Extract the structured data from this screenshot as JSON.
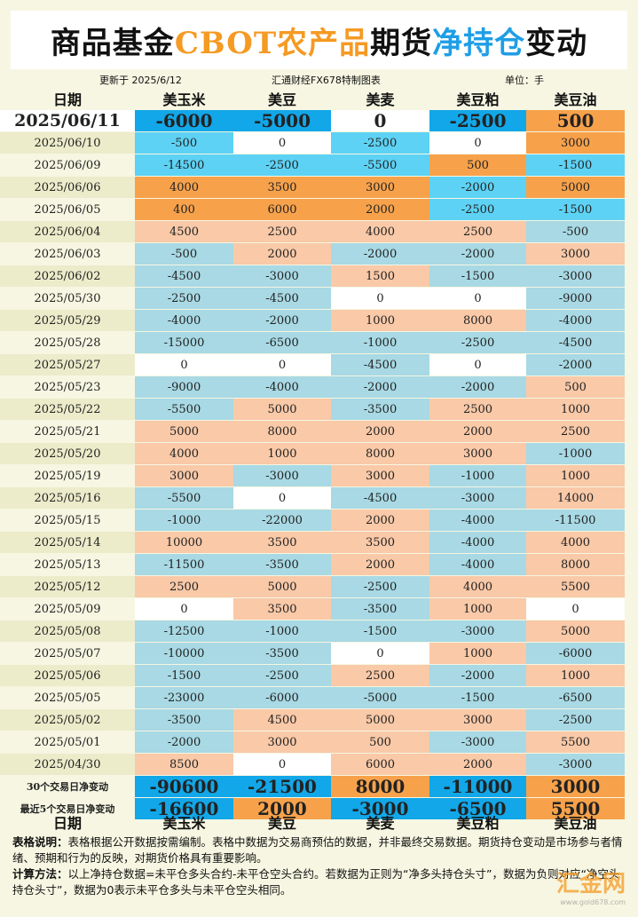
{
  "title": {
    "part1": "商品基金",
    "part2": "CBOT农产品",
    "part3": "期货",
    "part4": "净持仓",
    "part5": "变动"
  },
  "meta": {
    "updated": "更新于 2025/6/12",
    "source": "汇通财经FX678特制图表",
    "unit": "单位：手"
  },
  "headers": [
    "日期",
    "美玉米",
    "美豆",
    "美麦",
    "美豆粕",
    "美豆油"
  ],
  "rows": [
    {
      "date": "2025/06/11",
      "values": [
        "-6000",
        "-5000",
        "0",
        "-2500",
        "500"
      ],
      "colors": [
        "blue",
        "blue",
        "white",
        "blue",
        "orange"
      ],
      "big": true
    },
    {
      "date": "2025/06/10",
      "values": [
        "-500",
        "0",
        "-2500",
        "0",
        "3000"
      ],
      "colors": [
        "cyan",
        "white",
        "cyan",
        "white",
        "orange"
      ]
    },
    {
      "date": "2025/06/09",
      "values": [
        "-14500",
        "-2500",
        "-5500",
        "500",
        "-1500"
      ],
      "colors": [
        "cyan",
        "cyan",
        "cyan",
        "orange",
        "cyan"
      ]
    },
    {
      "date": "2025/06/06",
      "values": [
        "4000",
        "3500",
        "3000",
        "-2000",
        "5000"
      ],
      "colors": [
        "orange",
        "orange",
        "orange",
        "cyan",
        "orange"
      ]
    },
    {
      "date": "2025/06/05",
      "values": [
        "400",
        "6000",
        "2000",
        "-2500",
        "-1500"
      ],
      "colors": [
        "orange",
        "orange",
        "orange",
        "cyan",
        "cyan"
      ]
    },
    {
      "date": "2025/06/04",
      "values": [
        "4500",
        "2500",
        "4000",
        "2500",
        "-500"
      ],
      "colors": [
        "peach",
        "peach",
        "peach",
        "peach",
        "lblue"
      ]
    },
    {
      "date": "2025/06/03",
      "values": [
        "-500",
        "2000",
        "-2000",
        "-2000",
        "3000"
      ],
      "colors": [
        "lblue",
        "peach",
        "lblue",
        "lblue",
        "peach"
      ]
    },
    {
      "date": "2025/06/02",
      "values": [
        "-4500",
        "-3000",
        "1500",
        "-1500",
        "-3000"
      ],
      "colors": [
        "lblue",
        "lblue",
        "peach",
        "lblue",
        "lblue"
      ]
    },
    {
      "date": "2025/05/30",
      "values": [
        "-2500",
        "-4500",
        "0",
        "0",
        "-9000"
      ],
      "colors": [
        "lblue",
        "lblue",
        "white",
        "white",
        "lblue"
      ]
    },
    {
      "date": "2025/05/29",
      "values": [
        "-4000",
        "-2000",
        "1000",
        "8000",
        "-4000"
      ],
      "colors": [
        "lblue",
        "lblue",
        "peach",
        "peach",
        "lblue"
      ]
    },
    {
      "date": "2025/05/28",
      "values": [
        "-15000",
        "-6500",
        "-1000",
        "-2500",
        "-4500"
      ],
      "colors": [
        "lblue",
        "lblue",
        "lblue",
        "lblue",
        "lblue"
      ]
    },
    {
      "date": "2025/05/27",
      "values": [
        "0",
        "0",
        "-4500",
        "0",
        "-2000"
      ],
      "colors": [
        "white",
        "white",
        "lblue",
        "white",
        "lblue"
      ]
    },
    {
      "date": "2025/05/23",
      "values": [
        "-9000",
        "-4000",
        "-2000",
        "-2000",
        "500"
      ],
      "colors": [
        "lblue",
        "lblue",
        "lblue",
        "lblue",
        "peach"
      ]
    },
    {
      "date": "2025/05/22",
      "values": [
        "-5500",
        "5000",
        "-3500",
        "2500",
        "1000"
      ],
      "colors": [
        "lblue",
        "peach",
        "lblue",
        "peach",
        "peach"
      ]
    },
    {
      "date": "2025/05/21",
      "values": [
        "5000",
        "8000",
        "2000",
        "2000",
        "2500"
      ],
      "colors": [
        "peach",
        "peach",
        "peach",
        "peach",
        "peach"
      ]
    },
    {
      "date": "2025/05/20",
      "values": [
        "4000",
        "1000",
        "8000",
        "3000",
        "-1000"
      ],
      "colors": [
        "peach",
        "peach",
        "peach",
        "peach",
        "lblue"
      ]
    },
    {
      "date": "2025/05/19",
      "values": [
        "3000",
        "-3000",
        "3000",
        "-1000",
        "1000"
      ],
      "colors": [
        "peach",
        "lblue",
        "peach",
        "lblue",
        "peach"
      ]
    },
    {
      "date": "2025/05/16",
      "values": [
        "-5500",
        "0",
        "-4500",
        "-3000",
        "14000"
      ],
      "colors": [
        "lblue",
        "white",
        "lblue",
        "lblue",
        "peach"
      ]
    },
    {
      "date": "2025/05/15",
      "values": [
        "-1000",
        "-22000",
        "2000",
        "-4000",
        "-11500"
      ],
      "colors": [
        "lblue",
        "lblue",
        "peach",
        "lblue",
        "lblue"
      ]
    },
    {
      "date": "2025/05/14",
      "values": [
        "10000",
        "3500",
        "3500",
        "-4000",
        "4000"
      ],
      "colors": [
        "peach",
        "peach",
        "peach",
        "lblue",
        "peach"
      ]
    },
    {
      "date": "2025/05/13",
      "values": [
        "-11500",
        "-3500",
        "2000",
        "-4000",
        "8000"
      ],
      "colors": [
        "lblue",
        "lblue",
        "peach",
        "lblue",
        "peach"
      ]
    },
    {
      "date": "2025/05/12",
      "values": [
        "2500",
        "5000",
        "-2500",
        "4000",
        "5500"
      ],
      "colors": [
        "peach",
        "peach",
        "lblue",
        "peach",
        "peach"
      ]
    },
    {
      "date": "2025/05/09",
      "values": [
        "0",
        "3500",
        "-3500",
        "1000",
        "0"
      ],
      "colors": [
        "white",
        "peach",
        "lblue",
        "peach",
        "white"
      ]
    },
    {
      "date": "2025/05/08",
      "values": [
        "-12500",
        "-1000",
        "-1500",
        "-3000",
        "5000"
      ],
      "colors": [
        "lblue",
        "lblue",
        "lblue",
        "lblue",
        "peach"
      ]
    },
    {
      "date": "2025/05/07",
      "values": [
        "-10000",
        "-3500",
        "0",
        "1000",
        "-6000"
      ],
      "colors": [
        "lblue",
        "lblue",
        "white",
        "peach",
        "lblue"
      ]
    },
    {
      "date": "2025/05/06",
      "values": [
        "-1500",
        "-2500",
        "2500",
        "-2000",
        "1000"
      ],
      "colors": [
        "lblue",
        "lblue",
        "peach",
        "lblue",
        "peach"
      ]
    },
    {
      "date": "2025/05/05",
      "values": [
        "-23000",
        "-6000",
        "-5000",
        "-1500",
        "-6500"
      ],
      "colors": [
        "lblue",
        "lblue",
        "lblue",
        "lblue",
        "lblue"
      ]
    },
    {
      "date": "2025/05/02",
      "values": [
        "-3500",
        "4500",
        "5000",
        "3000",
        "-2500"
      ],
      "colors": [
        "lblue",
        "peach",
        "peach",
        "peach",
        "lblue"
      ]
    },
    {
      "date": "2025/05/01",
      "values": [
        "-2000",
        "3000",
        "500",
        "-3000",
        "5500"
      ],
      "colors": [
        "lblue",
        "peach",
        "peach",
        "lblue",
        "peach"
      ]
    },
    {
      "date": "2025/04/30",
      "values": [
        "8500",
        "0",
        "6000",
        "2000",
        "-3000"
      ],
      "colors": [
        "peach",
        "white",
        "peach",
        "peach",
        "lblue"
      ]
    }
  ],
  "summary": [
    {
      "label": "30个交易日净变动",
      "values": [
        "-90600",
        "-21500",
        "8000",
        "-11000",
        "3000"
      ],
      "colors": [
        "blue",
        "blue",
        "orange",
        "blue",
        "orange"
      ]
    },
    {
      "label": "最近5个交易日净变动",
      "values": [
        "-16600",
        "2000",
        "-3000",
        "-6500",
        "5500"
      ],
      "colors": [
        "blue",
        "orange",
        "blue",
        "blue",
        "orange"
      ]
    }
  ],
  "notes": {
    "label1": "表格说明：",
    "text1": "表格根据公开数据按需编制。表格中数据为交易商预估的数据，并非最终交易数据。期货持仓变动是市场参与者情绪、预期和行为的反映，对期货价格具有重要影响。",
    "label2": "计算方法：",
    "text2": "以上净持仓数据=未平仓多头合约-未平仓空头合约。若数据为正则为“净多头持仓头寸”，数据为负则对应“净空头持仓头寸”，数据为0表示未平仓多头与未平仓空头相同。"
  },
  "colors": {
    "blue": "#12a7e8",
    "orange": "#f7a24b",
    "white": "#ffffff",
    "cyan": "#5dd2f4",
    "lblue": "#a8d9e4",
    "peach": "#f9c9a8",
    "title_orange": "#f59a23",
    "title_blue": "#1e9ee6"
  },
  "watermark": {
    "text": "汇金网",
    "url": "www.gold678.com"
  }
}
